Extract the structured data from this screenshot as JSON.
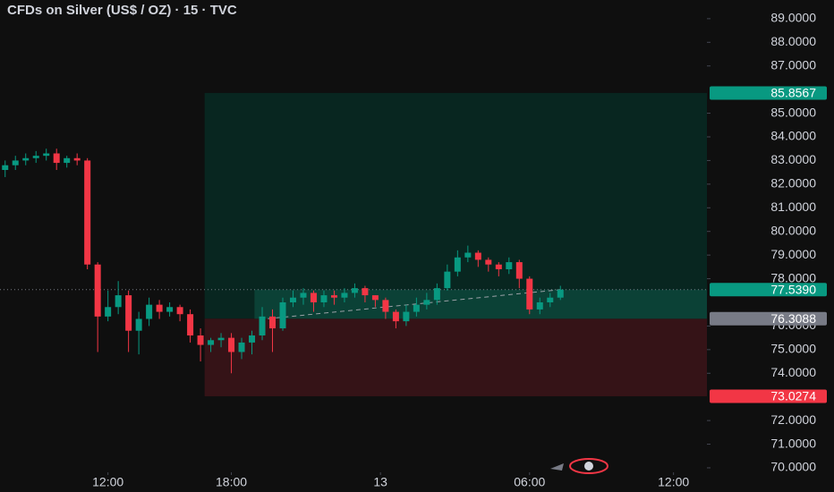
{
  "chart_data": {
    "type": "candlestick",
    "title": "CFDs on Silver (US$ / OZ) · 15 · TVC",
    "x": [
      -20,
      -18,
      -16,
      -14,
      -12,
      -10,
      -8,
      -6,
      -4,
      -2,
      0,
      2,
      4,
      6,
      8,
      10,
      12,
      14,
      16,
      18,
      20,
      22,
      24,
      26,
      28,
      30,
      32,
      34,
      36,
      38,
      40,
      42,
      44,
      46,
      48,
      50,
      52,
      54,
      56,
      58,
      60,
      62,
      64,
      66,
      68,
      70,
      72,
      74,
      76,
      78,
      80,
      82,
      84,
      86,
      88
    ],
    "open": [
      82.6,
      82.8,
      83.0,
      83.1,
      83.2,
      83.3,
      82.9,
      83.1,
      83.0,
      78.6,
      76.4,
      76.8,
      77.3,
      75.8,
      76.3,
      76.9,
      76.6,
      76.8,
      76.5,
      75.6,
      75.2,
      75.4,
      75.5,
      74.9,
      75.3,
      75.6,
      76.4,
      75.9,
      77.0,
      77.2,
      77.4,
      77.0,
      77.3,
      77.2,
      77.4,
      77.6,
      77.3,
      77.1,
      76.6,
      76.2,
      76.6,
      76.9,
      77.1,
      77.6,
      78.3,
      78.9,
      79.1,
      78.8,
      78.6,
      78.4,
      78.7,
      78.0,
      76.7,
      77.0,
      77.2
    ],
    "high": [
      83.0,
      83.2,
      83.3,
      83.4,
      83.5,
      83.5,
      83.2,
      83.3,
      83.1,
      78.7,
      77.5,
      77.9,
      77.5,
      76.6,
      77.2,
      77.1,
      77.0,
      76.9,
      76.7,
      75.9,
      75.5,
      75.7,
      75.7,
      75.5,
      75.8,
      76.8,
      76.7,
      77.2,
      77.5,
      77.6,
      77.5,
      77.5,
      77.5,
      77.6,
      77.8,
      77.7,
      77.3,
      77.2,
      76.7,
      76.9,
      77.2,
      77.4,
      77.8,
      78.6,
      79.2,
      79.4,
      79.2,
      78.9,
      78.7,
      78.9,
      78.8,
      78.1,
      77.2,
      77.4,
      77.7
    ],
    "low": [
      82.3,
      82.6,
      82.8,
      82.9,
      83.0,
      82.6,
      82.7,
      82.8,
      78.4,
      74.9,
      76.2,
      76.5,
      74.9,
      74.8,
      76.0,
      76.3,
      76.4,
      76.2,
      75.3,
      74.5,
      74.9,
      75.1,
      74.0,
      74.6,
      74.8,
      75.4,
      74.9,
      75.8,
      76.8,
      76.9,
      76.6,
      76.8,
      76.9,
      77.0,
      77.2,
      77.0,
      76.8,
      76.3,
      75.9,
      76.0,
      76.4,
      76.7,
      76.9,
      77.5,
      78.1,
      78.7,
      78.5,
      78.3,
      78.1,
      78.2,
      77.6,
      76.5,
      76.5,
      76.8,
      77.1
    ],
    "close": [
      82.8,
      83.0,
      83.1,
      83.2,
      83.3,
      82.9,
      83.1,
      83.0,
      78.6,
      76.4,
      76.8,
      77.3,
      75.8,
      76.3,
      76.9,
      76.6,
      76.8,
      76.5,
      75.6,
      75.2,
      75.4,
      75.5,
      74.9,
      75.3,
      75.6,
      76.4,
      75.9,
      77.0,
      77.2,
      77.4,
      77.0,
      77.3,
      77.2,
      77.4,
      77.6,
      77.3,
      77.1,
      76.6,
      76.2,
      76.6,
      76.9,
      77.1,
      77.6,
      78.3,
      78.9,
      79.1,
      78.8,
      78.6,
      78.4,
      78.7,
      78.0,
      76.7,
      77.0,
      77.2,
      77.54
    ],
    "up_color": "#089981",
    "down_color": "#f23645",
    "xlim": [
      -21,
      116.5
    ],
    "xticks": [
      {
        "value": 0,
        "label": "12:00"
      },
      {
        "value": 24,
        "label": "18:00"
      },
      {
        "value": 53,
        "label": "13"
      },
      {
        "value": 82,
        "label": "06:00"
      },
      {
        "value": 110,
        "label": "12:00"
      }
    ],
    "ylim": [
      69.81,
      89.79
    ],
    "yticks": [
      {
        "value": 70,
        "label": "70.0000"
      },
      {
        "value": 71,
        "label": "71.0000"
      },
      {
        "value": 72,
        "label": "72.0000"
      },
      {
        "value": 74,
        "label": "74.0000"
      },
      {
        "value": 75,
        "label": "75.0000"
      },
      {
        "value": 76,
        "label": "76.0000"
      },
      {
        "value": 78,
        "label": "78.0000"
      },
      {
        "value": 79,
        "label": "79.0000"
      },
      {
        "value": 80,
        "label": "80.0000"
      },
      {
        "value": 81,
        "label": "81.0000"
      },
      {
        "value": 82,
        "label": "82.0000"
      },
      {
        "value": 83,
        "label": "83.0000"
      },
      {
        "value": 84,
        "label": "84.0000"
      },
      {
        "value": 85,
        "label": "85.0000"
      },
      {
        "value": 87,
        "label": "87.0000"
      },
      {
        "value": 88,
        "label": "88.0000"
      },
      {
        "value": 89,
        "label": "89.0000"
      }
    ],
    "position": {
      "start_x": 18.8,
      "fill_start_x": 28.5,
      "target": {
        "value": 85.8567,
        "label": "85.8567"
      },
      "current": {
        "value": 77.539,
        "label": "77.5390"
      },
      "entry": {
        "value": 76.3088,
        "label": "76.3088"
      },
      "stop": {
        "value": 73.0274,
        "label": "73.0274"
      }
    }
  }
}
